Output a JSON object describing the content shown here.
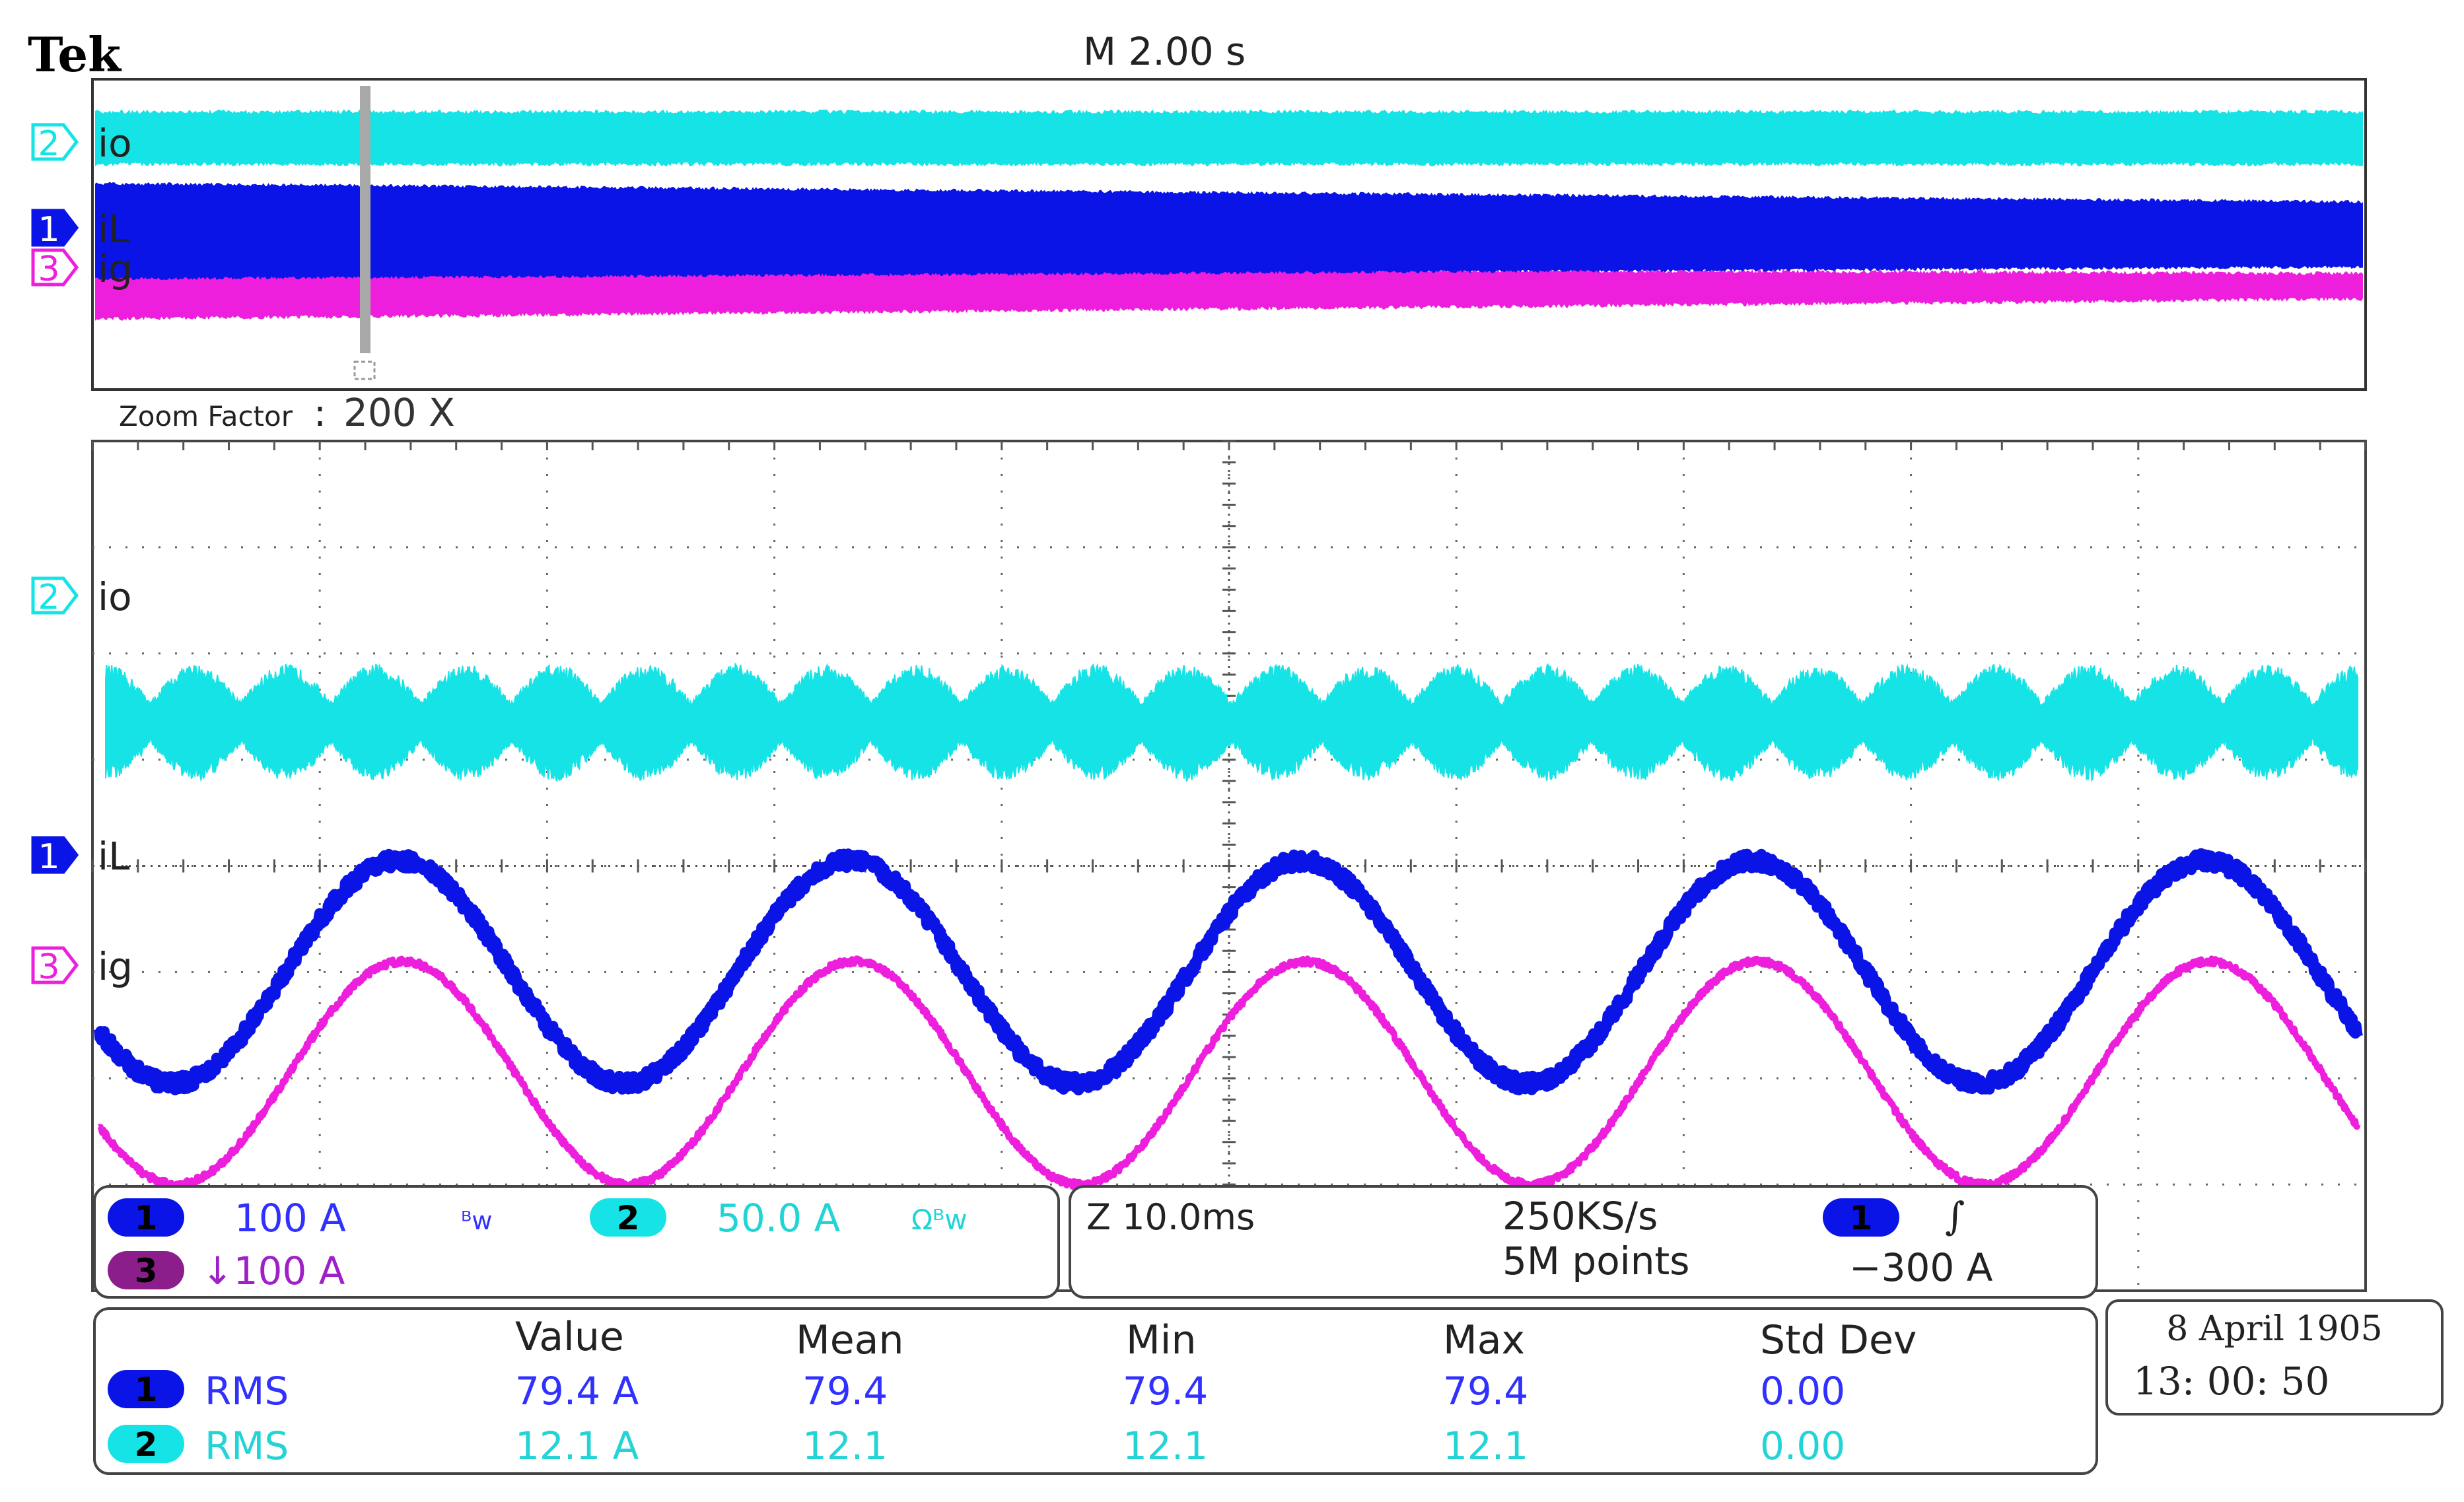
{
  "header": {
    "brand": "Tek",
    "timebase": "M 2.00 s",
    "zoom_label": "Zoom Factor",
    "zoom_sep": ":",
    "zoom_value": "200 X"
  },
  "colors": {
    "ch1": "#0a14e6",
    "ch2": "#16e3e6",
    "ch3": "#ee1fdc",
    "ch3_badge": "#8c1e8c",
    "ch1_text": "#3030ff",
    "ch2_text": "#22d4d6",
    "ch3_text": "#a020c8",
    "grid": "#666666"
  },
  "channels": [
    {
      "num": "1",
      "name": "iL"
    },
    {
      "num": "2",
      "name": "io"
    },
    {
      "num": "3",
      "name": "ig"
    }
  ],
  "settings": {
    "ch1_scale": "100 A",
    "ch1_bw": "ᴮw",
    "ch2_scale": "50.0 A",
    "ch2_bw": "Ωᴮw",
    "ch3_scale": "↓100 A",
    "zoom_time": "Z 10.0ms",
    "sample_rate": "250KS/s",
    "record_length": "5M points",
    "trigger_source": "1",
    "trigger_slope": "∫",
    "trigger_level": "−300 A"
  },
  "measurements": {
    "headers": [
      "Value",
      "Mean",
      "Min",
      "Max",
      "Std Dev"
    ],
    "rows": [
      {
        "ch": "1",
        "type": "RMS",
        "value": "79.4 A",
        "mean": "79.4",
        "min": "79.4",
        "max": "79.4",
        "std": "0.00"
      },
      {
        "ch": "2",
        "type": "RMS",
        "value": "12.1 A",
        "mean": "12.1",
        "min": "12.1",
        "max": "12.1",
        "std": "0.00"
      }
    ]
  },
  "datetime": {
    "date": "8 April 1905",
    "time": "13: 00: 50"
  },
  "chart_data": {
    "type": "line",
    "x_divisions": 10,
    "y_divisions": 8,
    "grid": true,
    "zoom_window_time_per_div_ms": 10,
    "series": [
      {
        "name": "io",
        "channel": 2,
        "shape": "amplitude-modulated ripple",
        "envelope_periods": 25,
        "center_div": 5.35,
        "peak_amplitude_div": 0.55,
        "min_amplitude_div": 0.2
      },
      {
        "name": "iL",
        "channel": 1,
        "shape": "sinusoid with switching ripple",
        "periods": 5,
        "center_div": 3.0,
        "amplitude_div": 1.05,
        "phase_start_div_value": 2.45
      },
      {
        "name": "ig",
        "channel": 3,
        "shape": "sinusoid",
        "periods": 5,
        "center_div": 2.05,
        "amplitude_div": 1.05,
        "phase_start_div_value": 1.55
      }
    ]
  }
}
